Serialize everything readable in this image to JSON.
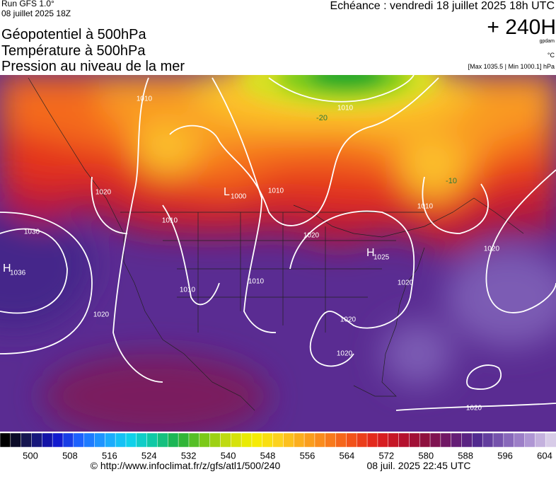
{
  "header": {
    "run": "Run GFS 1.0°",
    "run_date": "08 juillet 2025 18Z",
    "fields": [
      "Géopotentiel à 500hPa",
      "Température à 500hPa",
      "Pression au niveau de la mer"
    ],
    "forecast_time": "Echéance : vendredi 18 juillet 2025 18h UTC",
    "lead": "+ 240H",
    "unit_geo": "gpdam",
    "unit_temp": "°C",
    "pressure_range": "[Max 1035.5 | Min 1000.1] hPa"
  },
  "map": {
    "contour_labels": [
      "1010",
      "1010",
      "-20",
      "1020",
      "1010",
      "1010",
      "-10",
      "1010",
      "1030",
      "1020",
      "1020",
      "1010",
      "1010",
      "1020",
      "1020",
      "1020",
      "1020",
      "1020"
    ],
    "pressure_centers": [
      {
        "letter": "L",
        "value": "1000"
      },
      {
        "letter": "H",
        "value": "1025"
      },
      {
        "letter": "H",
        "value": "1036"
      }
    ]
  },
  "colorbar": {
    "ticks": [
      500,
      508,
      516,
      524,
      532,
      540,
      548,
      556,
      564,
      572,
      580,
      588,
      596,
      604
    ]
  },
  "footer": {
    "source": "© http://www.infoclimat.fr/z/gfs/atl1/500/240",
    "generated": "08 juil. 2025 22:45 UTC"
  }
}
